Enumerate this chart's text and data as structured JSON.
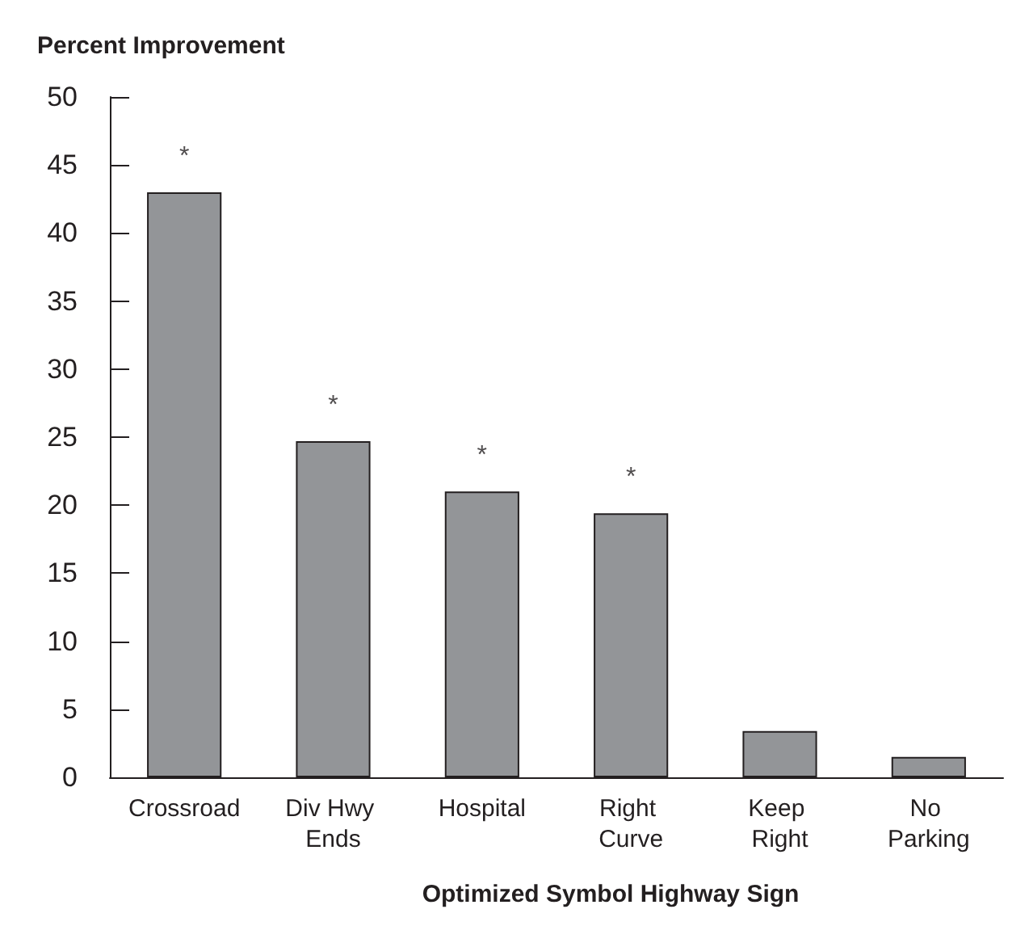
{
  "chart_data": {
    "type": "bar",
    "ylabel": "Percent Improvement",
    "xlabel": "Optimized Symbol Highway Sign",
    "categories": [
      "Crossroad",
      "Div Hwy Ends",
      "Hospital",
      "Right Curve",
      "Keep Right",
      "No Parking"
    ],
    "values": [
      43.0,
      24.7,
      21.0,
      19.4,
      3.4,
      1.5
    ],
    "color": "#939598",
    "ylim": [
      0,
      50
    ],
    "yticks": [
      0,
      5,
      10,
      15,
      20,
      25,
      30,
      35,
      40,
      45,
      50
    ],
    "grid": false,
    "annotations": [
      "*",
      "*",
      "*",
      "*"
    ]
  }
}
